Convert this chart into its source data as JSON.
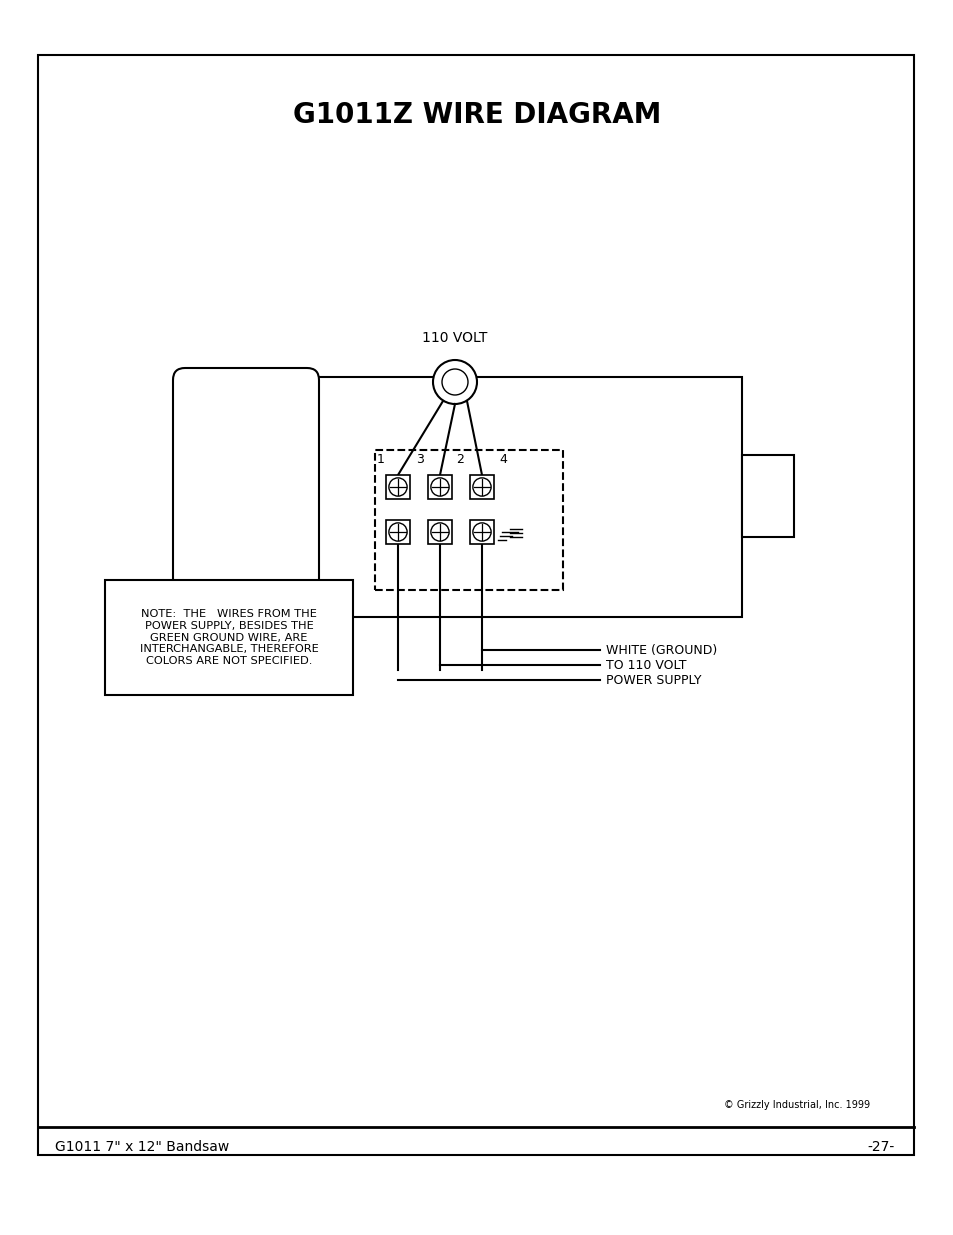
{
  "title": "G1011Z WIRE DIAGRAM",
  "title_fontsize": 20,
  "page_label_left": "G1011 7\" x 12\" Bandsaw",
  "page_label_right": "-27-",
  "copyright": "© Grizzly Industrial, Inc. 1999",
  "volt_label": "110 VOLT",
  "terminal_labels": [
    "1",
    "3",
    "2",
    "4"
  ],
  "note_text": "NOTE:  THE   WIRES FROM THE\nPOWER SUPPLY, BESIDES THE\nGREEN GROUND WIRE, ARE\nINTERCHANGABLE, THEREFORE\nCOLORS ARE NOT SPECIFIED.",
  "wire_label_1": "WHITE (GROUND)",
  "wire_label_2": "TO 110 VOLT",
  "wire_label_3": "POWER SUPPLY",
  "bg_color": "#ffffff",
  "line_color": "#000000"
}
